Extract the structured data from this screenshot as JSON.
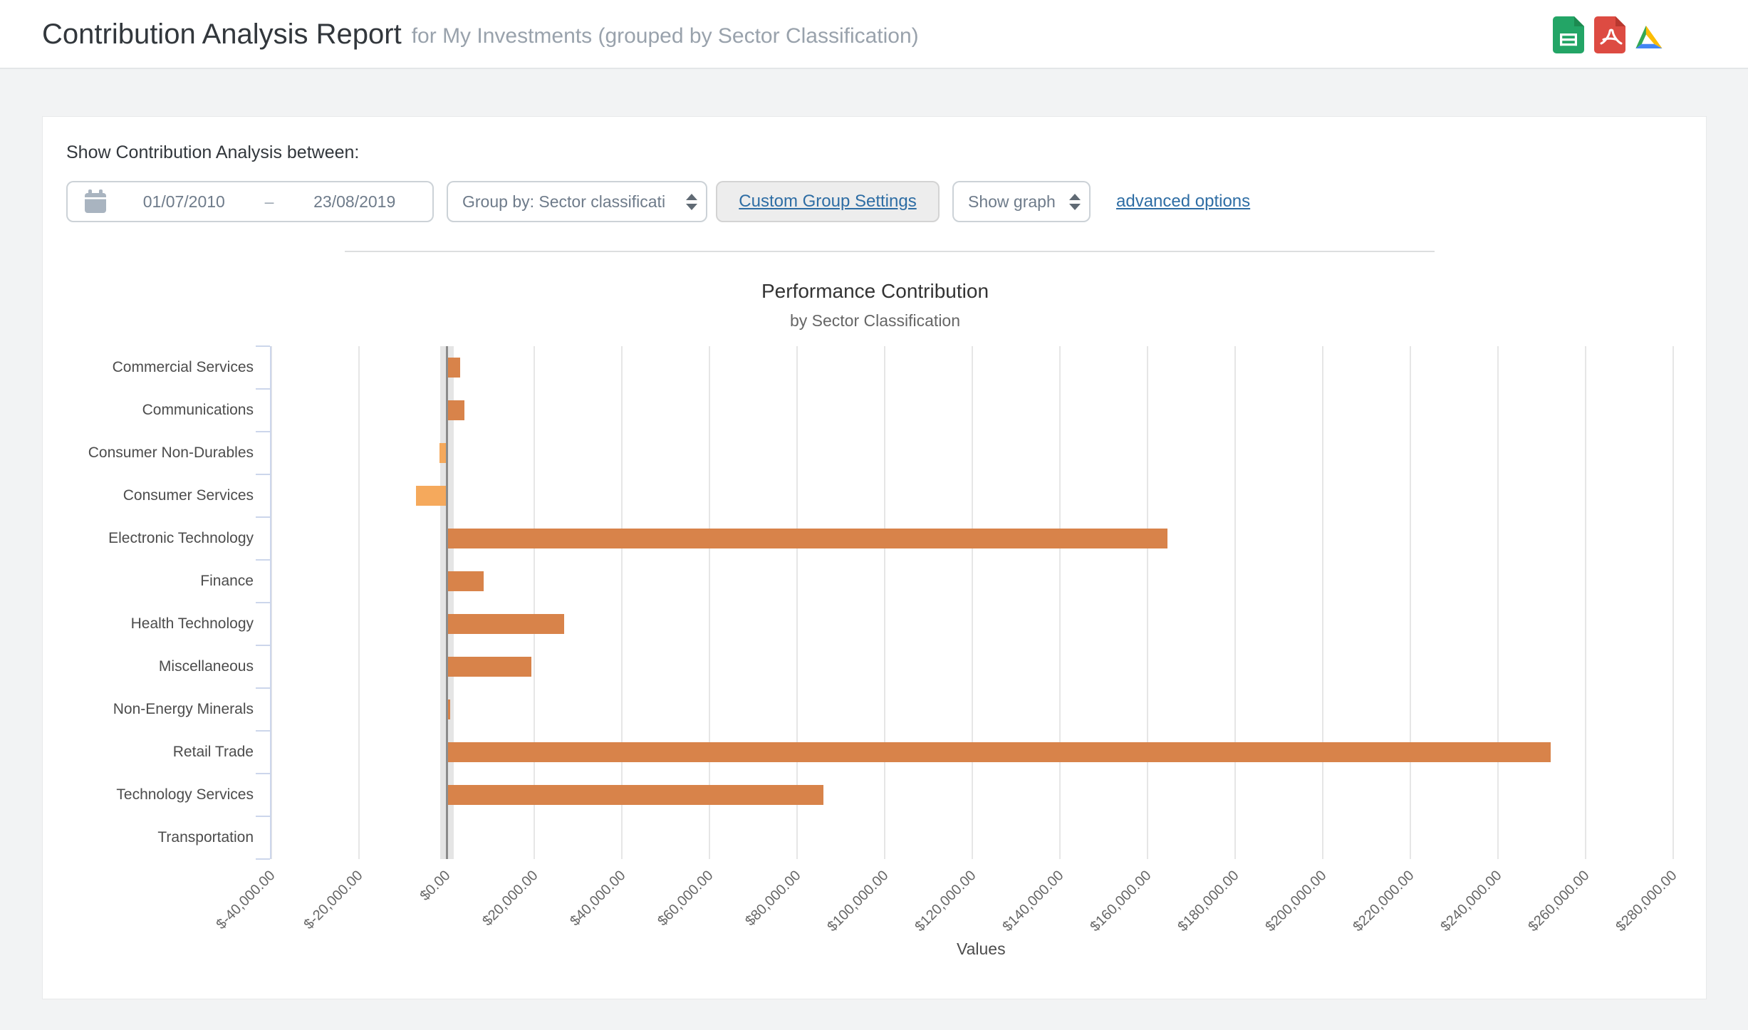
{
  "header": {
    "title": "Contribution Analysis Report",
    "subtitle": "for My Investments (grouped by Sector Classification)",
    "icons": [
      {
        "name": "google-sheets-export-icon"
      },
      {
        "name": "pdf-export-icon"
      },
      {
        "name": "google-drive-export-icon"
      }
    ]
  },
  "filters": {
    "label": "Show Contribution Analysis between:",
    "date_from": "01/07/2010",
    "date_separator": "–",
    "date_to": "23/08/2019",
    "group_by_selected": "Group by: Sector classificati",
    "custom_group_settings_label": "Custom Group Settings",
    "show_graph_selected": "Show graph",
    "advanced_options_label": "advanced options"
  },
  "chart_data": {
    "type": "bar",
    "orientation": "horizontal",
    "title": "Performance Contribution",
    "subtitle": "by Sector Classification",
    "xlabel": "Values",
    "ylabel": "",
    "categories": [
      "Commercial Services",
      "Communications",
      "Consumer Non-Durables",
      "Consumer Services",
      "Electronic Technology",
      "Finance",
      "Health Technology",
      "Miscellaneous",
      "Non-Energy Minerals",
      "Retail Trade",
      "Technology Services",
      "Transportation"
    ],
    "values": [
      3100,
      4100,
      -1700,
      -7000,
      164500,
      8400,
      26800,
      19400,
      800,
      252000,
      86000,
      0
    ],
    "xlim": [
      -40000,
      284000
    ],
    "tick_interval": 20000,
    "tick_values": [
      -40000,
      -20000,
      0,
      20000,
      40000,
      60000,
      80000,
      100000,
      120000,
      140000,
      160000,
      180000,
      200000,
      220000,
      240000,
      260000,
      280000
    ],
    "tick_labels": [
      "$-40,000.00",
      "$-20,000.00",
      "$0.00",
      "$20,000.00",
      "$40,000.00",
      "$60,000.00",
      "$80,000.00",
      "$100,000.00",
      "$120,000.00",
      "$140,000.00",
      "$160,000.00",
      "$180,000.00",
      "$200,000.00",
      "$220,000.00",
      "$240,000.00",
      "$260,000.00",
      "$280,000.00"
    ],
    "grid": true,
    "legend": "none",
    "positive_color": "#d8834a",
    "negative_color": "#f5a95c",
    "zero_band_color": "#e5e5e5",
    "zero_line_color": "#8b8b8b",
    "axis_color": "#ccd6eb",
    "grid_color": "#e6e6e6"
  }
}
